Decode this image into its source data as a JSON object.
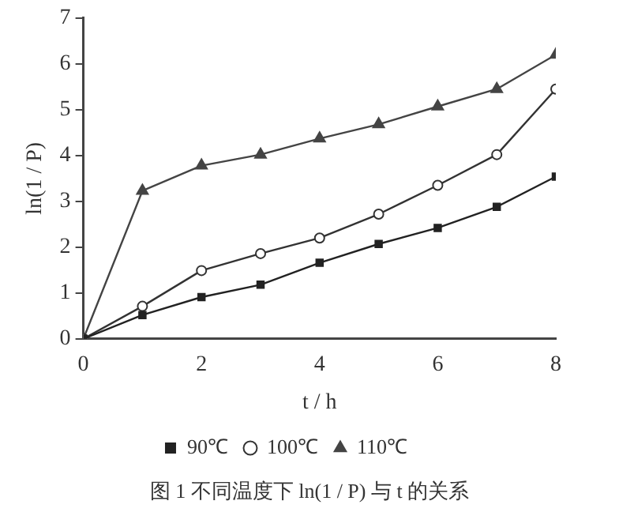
{
  "chart_data": {
    "type": "line",
    "title": "图 1 不同温度下 ln(1 / P) 与 t 的关系",
    "xlabel": "t / h",
    "ylabel": "ln(1 / P)",
    "x": [
      0,
      1,
      2,
      3,
      4,
      5,
      6,
      7,
      8
    ],
    "series": [
      {
        "name": "90℃",
        "color": "#222222",
        "marker": "square",
        "values": [
          0,
          0.52,
          0.91,
          1.18,
          1.66,
          2.07,
          2.42,
          2.88,
          3.54
        ]
      },
      {
        "name": "100℃",
        "color": "#333333",
        "marker": "circle",
        "values": [
          0,
          0.71,
          1.49,
          1.86,
          2.2,
          2.72,
          3.35,
          4.02,
          5.45
        ]
      },
      {
        "name": "110℃",
        "color": "#444444",
        "marker": "triangle",
        "values": [
          0,
          3.23,
          3.78,
          4.02,
          4.37,
          4.68,
          5.07,
          5.45,
          6.2
        ]
      }
    ],
    "xlim": [
      0,
      8
    ],
    "xticks": [
      0,
      2,
      4,
      6,
      8
    ],
    "ylim": [
      0,
      7
    ],
    "yticks": [
      0,
      1,
      2,
      3,
      4,
      5,
      6,
      7
    ],
    "grid": false,
    "legend": "bottom",
    "line_style": "solid"
  }
}
